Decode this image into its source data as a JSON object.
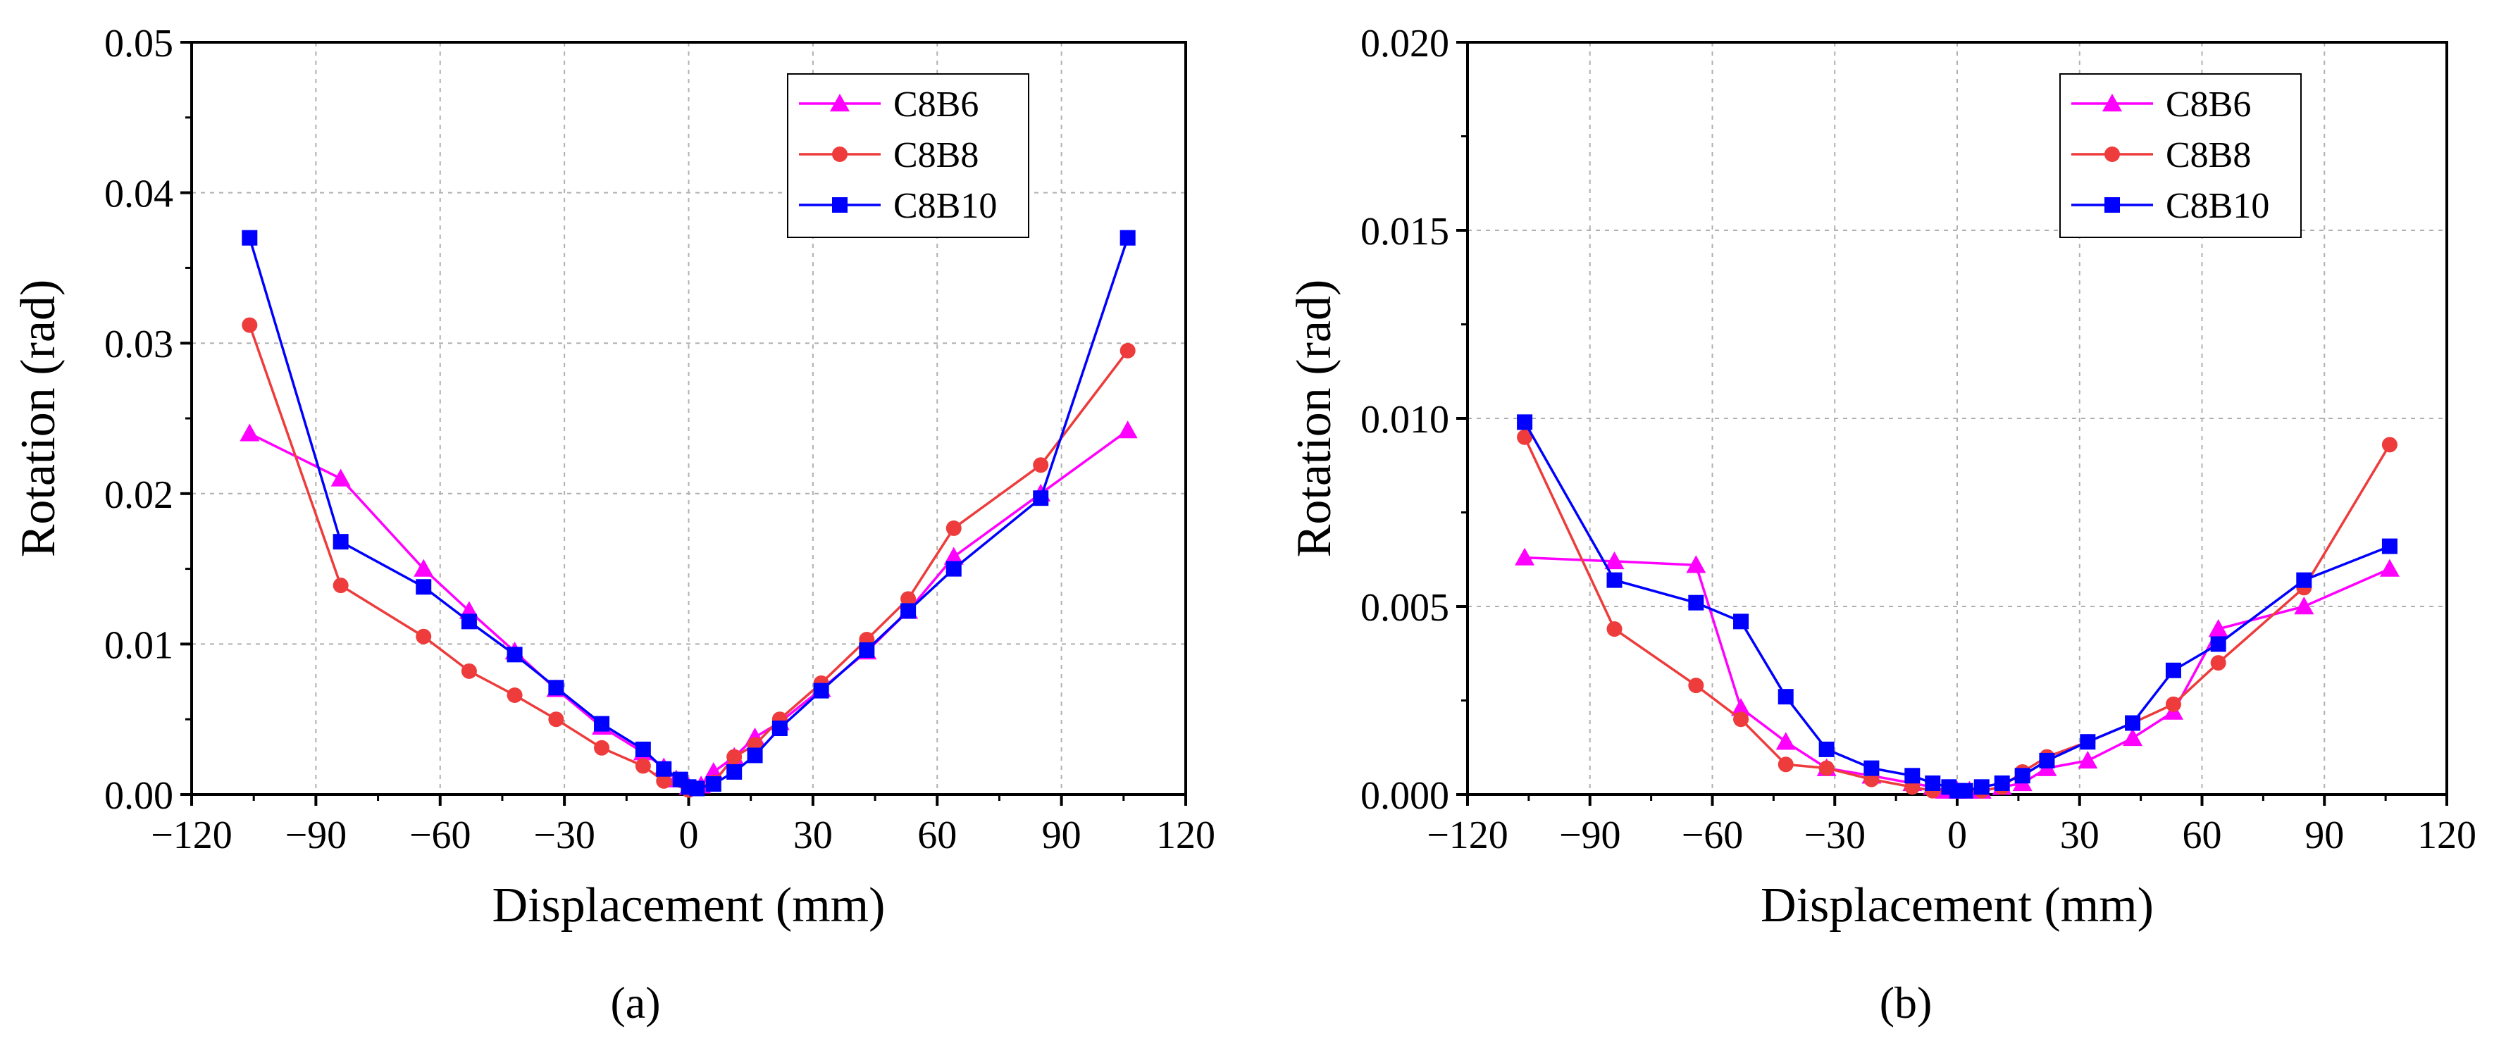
{
  "chart_data": [
    {
      "type": "line",
      "panel_label": "(a)",
      "xlabel": "Displacement (mm)",
      "ylabel": "Rotation (rad)",
      "xlim": [
        -120,
        120
      ],
      "ylim": [
        0,
        0.05
      ],
      "xticks": [
        -120,
        -90,
        -60,
        -30,
        0,
        30,
        60,
        90,
        120
      ],
      "xtick_labels": [
        "−120",
        "−90",
        "−60",
        "−30",
        "0",
        "30",
        "60",
        "90",
        "120"
      ],
      "yticks": [
        0,
        0.01,
        0.02,
        0.03,
        0.04,
        0.05
      ],
      "ytick_labels": [
        "0.00",
        "0.01",
        "0.02",
        "0.03",
        "0.04",
        "0.05"
      ],
      "grid": true,
      "legend_position": "top-right",
      "series": [
        {
          "name": "C8B6",
          "color": "#ff00ff",
          "marker": "triangle",
          "x": [
            -106,
            -84,
            -64,
            -53,
            -42,
            -32,
            -21,
            -11,
            -6,
            -3,
            0,
            3,
            6,
            11,
            16,
            22,
            32,
            43,
            53,
            64,
            85,
            106
          ],
          "y": [
            0.024,
            0.021,
            0.015,
            0.0122,
            0.0095,
            0.007,
            0.0045,
            0.0028,
            0.0018,
            0.001,
            0.0005,
            0.0006,
            0.0015,
            0.0025,
            0.0038,
            0.0048,
            0.007,
            0.0095,
            0.0122,
            0.0158,
            0.02,
            0.0242
          ]
        },
        {
          "name": "C8B8",
          "color": "#ee3b3b",
          "marker": "circle",
          "x": [
            -106,
            -84,
            -64,
            -53,
            -42,
            -32,
            -21,
            -11,
            -6,
            0,
            6,
            11,
            16,
            22,
            32,
            43,
            53,
            64,
            85,
            106
          ],
          "y": [
            0.0312,
            0.0139,
            0.0105,
            0.0082,
            0.0066,
            0.005,
            0.0031,
            0.0019,
            0.0009,
            0.0003,
            0.0008,
            0.0025,
            0.0033,
            0.005,
            0.0074,
            0.0103,
            0.013,
            0.0177,
            0.0219,
            0.0295
          ]
        },
        {
          "name": "C8B10",
          "color": "#0000ff",
          "marker": "square",
          "x": [
            -106,
            -84,
            -64,
            -53,
            -42,
            -32,
            -21,
            -11,
            -6,
            -2,
            0,
            2,
            6,
            11,
            16,
            22,
            32,
            43,
            53,
            64,
            85,
            106
          ],
          "y": [
            0.037,
            0.0168,
            0.0138,
            0.0115,
            0.0093,
            0.0071,
            0.0047,
            0.003,
            0.0017,
            0.001,
            0.0005,
            0.0004,
            0.0007,
            0.0015,
            0.0026,
            0.0044,
            0.0069,
            0.0096,
            0.0122,
            0.015,
            0.0197,
            0.037
          ]
        }
      ]
    },
    {
      "type": "line",
      "panel_label": "(b)",
      "xlabel": "Displacement (mm)",
      "ylabel": "Rotation (rad)",
      "xlim": [
        -120,
        120
      ],
      "ylim": [
        0,
        0.02
      ],
      "xticks": [
        -120,
        -90,
        -60,
        -30,
        0,
        30,
        60,
        90,
        120
      ],
      "xtick_labels": [
        "−120",
        "−90",
        "−60",
        "−30",
        "0",
        "30",
        "60",
        "90",
        "120"
      ],
      "yticks": [
        0,
        0.005,
        0.01,
        0.015,
        0.02
      ],
      "ytick_labels": [
        "0.000",
        "0.005",
        "0.010",
        "0.015",
        "0.020"
      ],
      "grid": true,
      "legend_position": "top-right",
      "series": [
        {
          "name": "C8B6",
          "color": "#ff00ff",
          "marker": "triangle",
          "x": [
            -106,
            -84,
            -64,
            -53,
            -42,
            -32,
            -21,
            -11,
            -6,
            -3,
            0,
            3,
            6,
            11,
            16,
            22,
            32,
            43,
            53,
            64,
            85,
            106
          ],
          "y": [
            0.0063,
            0.0062,
            0.0061,
            0.0023,
            0.0014,
            0.0007,
            0.0005,
            0.0003,
            0.0002,
            0.0001,
            0.0001,
            0.0001,
            0.0001,
            0.0002,
            0.0003,
            0.0007,
            0.0009,
            0.0015,
            0.0022,
            0.0044,
            0.005,
            0.006
          ]
        },
        {
          "name": "C8B8",
          "color": "#ee3b3b",
          "marker": "circle",
          "x": [
            -106,
            -84,
            -64,
            -53,
            -42,
            -32,
            -21,
            -11,
            -6,
            0,
            6,
            11,
            16,
            22,
            32,
            43,
            53,
            64,
            85,
            106
          ],
          "y": [
            0.0095,
            0.0044,
            0.0029,
            0.002,
            0.0008,
            0.0007,
            0.0004,
            0.0002,
            0.0001,
            0.0001,
            0.0001,
            0.0002,
            0.0006,
            0.001,
            0.0014,
            0.0019,
            0.0024,
            0.0035,
            0.0055,
            0.0093
          ]
        },
        {
          "name": "C8B10",
          "color": "#0000ff",
          "marker": "square",
          "x": [
            -106,
            -84,
            -64,
            -53,
            -42,
            -32,
            -21,
            -11,
            -6,
            -2,
            0,
            2,
            6,
            11,
            16,
            22,
            32,
            43,
            53,
            64,
            85,
            106
          ],
          "y": [
            0.0099,
            0.0057,
            0.0051,
            0.0046,
            0.0026,
            0.0012,
            0.0007,
            0.0005,
            0.0003,
            0.0002,
            0.0001,
            0.0001,
            0.0002,
            0.0003,
            0.0005,
            0.0009,
            0.0014,
            0.0019,
            0.0033,
            0.004,
            0.0057,
            0.0066
          ]
        }
      ]
    }
  ]
}
